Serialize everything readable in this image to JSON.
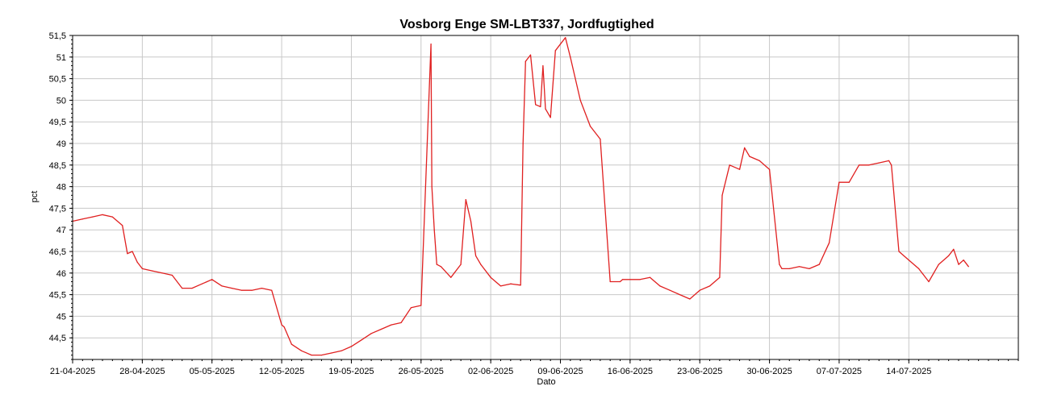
{
  "chart_data": {
    "type": "line",
    "title": "Vosborg Enge SM-LBT337, Jordfugtighed",
    "xlabel": "Dato",
    "ylabel": "pct",
    "grid": true,
    "xlim": [
      "2025-04-21",
      "2025-07-25"
    ],
    "ylim": [
      44,
      51.5
    ],
    "x_ticks": [
      "21-04-2025",
      "28-04-2025",
      "05-05-2025",
      "12-05-2025",
      "19-05-2025",
      "26-05-2025",
      "02-06-2025",
      "09-06-2025",
      "16-06-2025",
      "23-06-2025",
      "30-06-2025",
      "07-07-2025",
      "14-07-2025"
    ],
    "y_ticks": [
      "44,5",
      "45",
      "45,5",
      "46",
      "46,5",
      "47",
      "47,5",
      "48",
      "48,5",
      "49",
      "49,5",
      "50",
      "50,5",
      "51",
      "51,5"
    ],
    "series": [
      {
        "color": "#e02020",
        "x": [
          "2025-04-21",
          "2025-04-22",
          "2025-04-23",
          "2025-04-24",
          "2025-04-25",
          "2025-04-26",
          "2025-04-26 12:00",
          "2025-04-27",
          "2025-04-27 12:00",
          "2025-04-28",
          "2025-04-29",
          "2025-04-30",
          "2025-05-01",
          "2025-05-02",
          "2025-05-03",
          "2025-05-04",
          "2025-05-05",
          "2025-05-06",
          "2025-05-07",
          "2025-05-08",
          "2025-05-09",
          "2025-05-10",
          "2025-05-11",
          "2025-05-12",
          "2025-05-12 06:00",
          "2025-05-13",
          "2025-05-14",
          "2025-05-15",
          "2025-05-16",
          "2025-05-17",
          "2025-05-18",
          "2025-05-19",
          "2025-05-20",
          "2025-05-21",
          "2025-05-22",
          "2025-05-23",
          "2025-05-24",
          "2025-05-25",
          "2025-05-26",
          "2025-05-27",
          "2025-05-27 02:00",
          "2025-05-27 08:00",
          "2025-05-27 14:00",
          "2025-05-28",
          "2025-05-29",
          "2025-05-30",
          "2025-05-30 12:00",
          "2025-05-31",
          "2025-05-31 12:00",
          "2025-06-01",
          "2025-06-02",
          "2025-06-03",
          "2025-06-04",
          "2025-06-05",
          "2025-06-05 06:00",
          "2025-06-05 12:00",
          "2025-06-06",
          "2025-06-06 12:00",
          "2025-06-07",
          "2025-06-07 06:00",
          "2025-06-07 12:00",
          "2025-06-08",
          "2025-06-08 12:00",
          "2025-06-09",
          "2025-06-09 12:00",
          "2025-06-10",
          "2025-06-11",
          "2025-06-12",
          "2025-06-13",
          "2025-06-14",
          "2025-06-15",
          "2025-06-15 06:00",
          "2025-06-16",
          "2025-06-17",
          "2025-06-18",
          "2025-06-19",
          "2025-06-20",
          "2025-06-21",
          "2025-06-22",
          "2025-06-23",
          "2025-06-24",
          "2025-06-25",
          "2025-06-25 06:00",
          "2025-06-26",
          "2025-06-27",
          "2025-06-27 12:00",
          "2025-06-28",
          "2025-06-29",
          "2025-06-30",
          "2025-07-01",
          "2025-07-01 06:00",
          "2025-07-02",
          "2025-07-03",
          "2025-07-04",
          "2025-07-05",
          "2025-07-06",
          "2025-07-07",
          "2025-07-08",
          "2025-07-09",
          "2025-07-10",
          "2025-07-11",
          "2025-07-12",
          "2025-07-12 06:00",
          "2025-07-13",
          "2025-07-14",
          "2025-07-15",
          "2025-07-16",
          "2025-07-17",
          "2025-07-18",
          "2025-07-18 12:00",
          "2025-07-19",
          "2025-07-19 12:00",
          "2025-07-20"
        ],
        "y": [
          47.2,
          47.25,
          47.3,
          47.35,
          47.3,
          47.1,
          46.45,
          46.5,
          46.25,
          46.1,
          46.05,
          46.0,
          45.95,
          45.65,
          45.65,
          45.75,
          45.85,
          45.7,
          45.65,
          45.6,
          45.6,
          45.65,
          45.6,
          44.8,
          44.75,
          44.35,
          44.2,
          44.1,
          44.1,
          44.15,
          44.2,
          44.3,
          44.45,
          44.6,
          44.7,
          44.8,
          44.85,
          45.2,
          45.25,
          51.3,
          48.0,
          47.0,
          46.2,
          46.15,
          45.9,
          46.2,
          47.7,
          47.2,
          46.4,
          46.2,
          45.9,
          45.7,
          45.75,
          45.72,
          49.0,
          50.9,
          51.05,
          49.9,
          49.85,
          50.8,
          49.8,
          49.6,
          51.15,
          51.3,
          51.45,
          51.0,
          50.0,
          49.4,
          49.1,
          45.8,
          45.8,
          45.85,
          45.85,
          45.85,
          45.9,
          45.7,
          45.6,
          45.5,
          45.4,
          45.6,
          45.7,
          45.9,
          47.8,
          48.5,
          48.4,
          48.9,
          48.7,
          48.6,
          48.4,
          46.2,
          46.1,
          46.1,
          46.15,
          46.1,
          46.2,
          46.7,
          48.1,
          48.1,
          48.5,
          48.5,
          48.55,
          48.6,
          48.5,
          46.5,
          46.3,
          46.1,
          45.8,
          46.2,
          46.4,
          46.55,
          46.2,
          46.3,
          46.15
        ]
      }
    ]
  }
}
